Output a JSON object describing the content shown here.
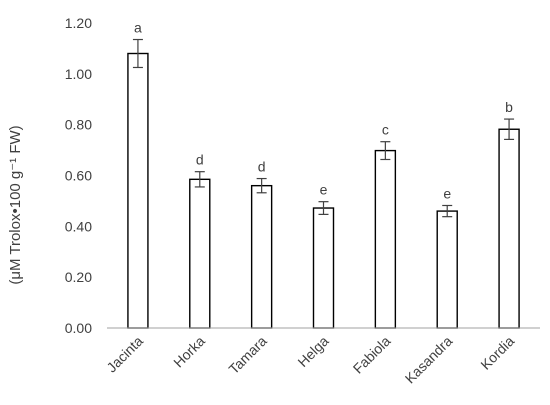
{
  "chart_data": {
    "type": "bar",
    "title": "",
    "xlabel": "",
    "ylabel": "(μM Trolox•100 g⁻¹ FW)",
    "ylim": [
      0,
      1.2
    ],
    "yticks": [
      "0.00",
      "0.20",
      "0.40",
      "0.60",
      "0.80",
      "1.00",
      "1.20"
    ],
    "grid": false,
    "legend": "none",
    "categories": [
      "Jacinta",
      "Horka",
      "Tamara",
      "Helga",
      "Fabiola",
      "Kasandra",
      "Kordia"
    ],
    "values": [
      1.08,
      0.585,
      0.56,
      0.472,
      0.698,
      0.46,
      0.782
    ],
    "error": [
      0.055,
      0.03,
      0.028,
      0.025,
      0.035,
      0.022,
      0.04
    ],
    "letters": [
      "a",
      "d",
      "d",
      "e",
      "c",
      "e",
      "b"
    ],
    "colors": {
      "bar_fill": "#ffffff",
      "bar_stroke": "#000000",
      "axis": "#808080",
      "text": "#404040"
    }
  }
}
